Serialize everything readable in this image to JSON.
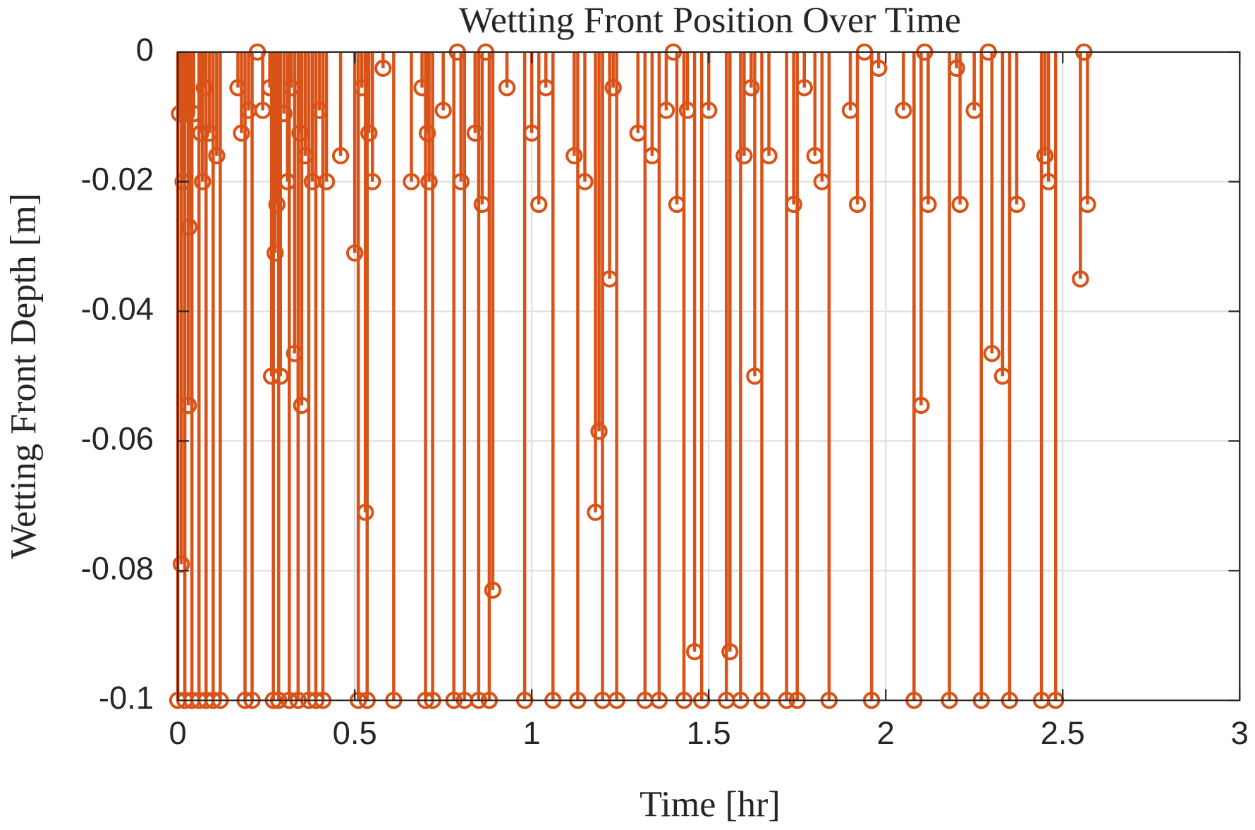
{
  "chart_data": {
    "type": "stem",
    "title": "Wetting Front Position Over Time",
    "xlabel": "Time [hr]",
    "ylabel": "Wetting Front Depth [m]",
    "color": "#D95319",
    "grid": true,
    "xlim": [
      0,
      3
    ],
    "xticks": [
      0,
      0.5,
      1,
      1.5,
      2,
      2.5,
      3
    ],
    "ylim": [
      -0.1,
      0
    ],
    "yticks": [
      -0.1,
      -0.08,
      -0.06,
      -0.04,
      -0.02,
      0
    ],
    "x": [
      0,
      0.005,
      0.01,
      0.015,
      0.02,
      0.025,
      0.03,
      0.032,
      0.04,
      0.045,
      0.06,
      0.065,
      0.07,
      0.075,
      0.08,
      0.09,
      0.1,
      0.11,
      0.12,
      0.17,
      0.18,
      0.19,
      0.2,
      0.21,
      0.225,
      0.24,
      0.26,
      0.265,
      0.27,
      0.275,
      0.28,
      0.285,
      0.29,
      0.3,
      0.31,
      0.315,
      0.32,
      0.33,
      0.34,
      0.345,
      0.35,
      0.36,
      0.37,
      0.38,
      0.39,
      0.4,
      0.41,
      0.42,
      0.46,
      0.5,
      0.51,
      0.52,
      0.53,
      0.535,
      0.54,
      0.55,
      0.58,
      0.61,
      0.66,
      0.69,
      0.7,
      0.705,
      0.71,
      0.72,
      0.75,
      0.78,
      0.79,
      0.8,
      0.81,
      0.84,
      0.85,
      0.86,
      0.87,
      0.88,
      0.89,
      0.93,
      0.98,
      1.0,
      1.02,
      1.04,
      1.06,
      1.12,
      1.13,
      1.15,
      1.18,
      1.19,
      1.2,
      1.22,
      1.23,
      1.24,
      1.3,
      1.32,
      1.34,
      1.36,
      1.38,
      1.4,
      1.41,
      1.43,
      1.44,
      1.46,
      1.48,
      1.5,
      1.55,
      1.56,
      1.59,
      1.6,
      1.62,
      1.63,
      1.65,
      1.67,
      1.72,
      1.74,
      1.75,
      1.77,
      1.8,
      1.82,
      1.84,
      1.9,
      1.92,
      1.94,
      1.96,
      1.98,
      2.05,
      2.08,
      2.1,
      2.11,
      2.12,
      2.18,
      2.2,
      2.21,
      2.25,
      2.27,
      2.29,
      2.3,
      2.33,
      2.35,
      2.37,
      2.44,
      2.45,
      2.46,
      2.48,
      2.55,
      2.56,
      2.57
    ],
    "values": [
      -0.1,
      -0.0095,
      -0.079,
      -0.02,
      -0.1,
      -0.0095,
      -0.0545,
      -0.027,
      -0.1,
      -0.0095,
      -0.1,
      -0.0125,
      -0.02,
      -0.0055,
      -0.1,
      -0.0125,
      -0.1,
      -0.016,
      -0.1,
      -0.0055,
      -0.0125,
      -0.1,
      -0.009,
      -0.1,
      0,
      -0.009,
      -0.0055,
      -0.05,
      -0.1,
      -0.031,
      -0.0235,
      -0.1,
      -0.05,
      -0.0095,
      -0.02,
      -0.1,
      -0.0055,
      -0.0465,
      -0.1,
      -0.0125,
      -0.0545,
      -0.016,
      -0.1,
      -0.02,
      -0.1,
      -0.009,
      -0.1,
      -0.02,
      -0.016,
      -0.031,
      -0.1,
      -0.0055,
      -0.071,
      -0.1,
      -0.0125,
      -0.02,
      -0.0025,
      -0.1,
      -0.02,
      -0.0055,
      -0.1,
      -0.0125,
      -0.02,
      -0.1,
      -0.009,
      -0.1,
      0,
      -0.02,
      -0.1,
      -0.0125,
      -0.1,
      -0.0235,
      0,
      -0.1,
      -0.083,
      -0.0055,
      -0.1,
      -0.0125,
      -0.0235,
      -0.0055,
      -0.1,
      -0.016,
      -0.1,
      -0.02,
      -0.071,
      -0.0585,
      -0.1,
      -0.035,
      -0.0055,
      -0.1,
      -0.0125,
      -0.1,
      -0.016,
      -0.1,
      -0.009,
      0,
      -0.0235,
      -0.1,
      -0.009,
      -0.0925,
      -0.1,
      -0.009,
      -0.1,
      -0.0925,
      -0.1,
      -0.016,
      -0.0055,
      -0.05,
      -0.1,
      -0.016,
      -0.1,
      -0.0235,
      -0.1,
      -0.0055,
      -0.016,
      -0.02,
      -0.1,
      -0.009,
      -0.0235,
      0,
      -0.1,
      -0.0025,
      -0.009,
      -0.1,
      -0.0545,
      0,
      -0.0235,
      -0.1,
      -0.0025,
      -0.0235,
      -0.009,
      -0.1,
      0,
      -0.0465,
      -0.05,
      -0.1,
      -0.0235,
      -0.1,
      -0.016,
      -0.02,
      -0.1,
      -0.035,
      0,
      -0.0235
    ]
  }
}
